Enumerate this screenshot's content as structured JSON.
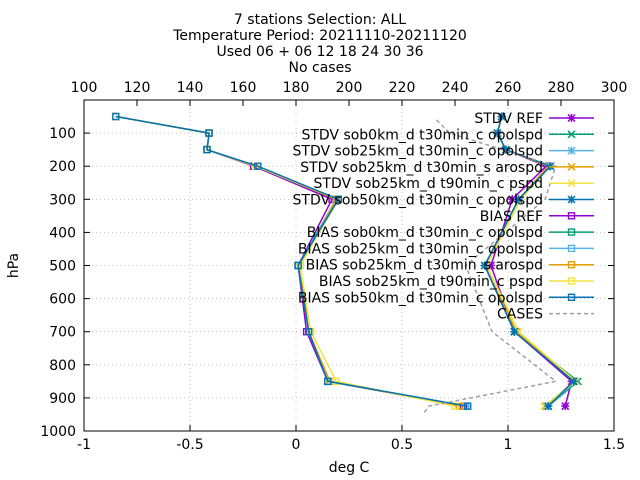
{
  "header": {
    "title": "7 stations Selection: ALL",
    "subtitle": "Temperature  Period: 20211110-20211120",
    "used": "Used 06 + 06 12 18 24 30 36",
    "cases": "No cases"
  },
  "chart_data": {
    "type": "line",
    "title": "7 stations Selection: ALL",
    "xlabel": "deg C",
    "ylabel": "hPa",
    "xlim": [
      -1,
      1.5
    ],
    "ylim": [
      1000,
      0
    ],
    "x_ticks": [
      "-1",
      "-0.5",
      "0",
      "0.5",
      "1",
      "1.5"
    ],
    "y_ticks": [
      "100",
      "200",
      "300",
      "400",
      "500",
      "600",
      "700",
      "800",
      "900",
      "1000"
    ],
    "x2lim": [
      100,
      300
    ],
    "x2_ticks": [
      "100",
      "120",
      "140",
      "160",
      "180",
      "200",
      "220",
      "240",
      "260",
      "280",
      "300"
    ],
    "grid": true,
    "legend_position": "top-right",
    "levels": [
      50,
      100,
      150,
      200,
      300,
      500,
      700,
      850,
      925
    ],
    "series": [
      {
        "name": "STDV REF",
        "color": "#9400d3",
        "marker": "star",
        "dash": false,
        "axis": "x1",
        "values": [
          0.97,
          0.95,
          0.99,
          1.18,
          1.02,
          0.92,
          1.03,
          1.3,
          1.27
        ]
      },
      {
        "name": "STDV sob0km_d t30min_c opolspd",
        "color": "#009e73",
        "marker": "x",
        "dash": false,
        "axis": "x1",
        "values": [
          0.97,
          0.95,
          0.99,
          1.2,
          1.05,
          0.89,
          1.03,
          1.33,
          1.19
        ]
      },
      {
        "name": "STDV sob25km_d t30min_c opolspd",
        "color": "#56b4e9",
        "marker": "star",
        "dash": false,
        "axis": "x1",
        "values": [
          0.97,
          0.95,
          0.99,
          1.2,
          1.05,
          0.89,
          1.03,
          1.32,
          1.19
        ]
      },
      {
        "name": "STDV sob25km_d t30min_s arospd",
        "color": "#e69f00",
        "marker": "x",
        "dash": false,
        "axis": "x1",
        "values": [
          0.97,
          0.95,
          0.99,
          1.19,
          1.05,
          0.89,
          1.04,
          1.31,
          1.18
        ]
      },
      {
        "name": "STDV sob25km_d t90min_c pspd",
        "color": "#f0e442",
        "marker": "x",
        "dash": false,
        "axis": "x1",
        "values": [
          0.97,
          0.95,
          0.99,
          1.2,
          1.06,
          0.9,
          1.05,
          1.32,
          1.17
        ]
      },
      {
        "name": "STDV sob50km_d t30min_c opolspd",
        "color": "#0072b2",
        "marker": "star",
        "dash": false,
        "axis": "x1",
        "values": [
          0.97,
          0.95,
          0.99,
          1.2,
          1.05,
          0.89,
          1.03,
          1.31,
          1.19
        ]
      },
      {
        "name": "BIAS REF",
        "color": "#9400d3",
        "marker": "square",
        "dash": false,
        "axis": "x1",
        "values": [
          -0.85,
          -0.41,
          -0.42,
          -0.2,
          0.17,
          0.01,
          0.05,
          0.15,
          0.79
        ]
      },
      {
        "name": "BIAS sob0km_d t30min_c opolspd",
        "color": "#009e73",
        "marker": "square",
        "dash": false,
        "axis": "x1",
        "values": [
          -0.85,
          -0.41,
          -0.42,
          -0.19,
          0.19,
          0.01,
          0.06,
          0.15,
          0.8
        ]
      },
      {
        "name": "BIAS sob25km_d t30min_c opolspd",
        "color": "#56b4e9",
        "marker": "square",
        "dash": false,
        "axis": "x1",
        "values": [
          -0.85,
          -0.41,
          -0.42,
          -0.19,
          0.19,
          0.01,
          0.06,
          0.15,
          0.8
        ]
      },
      {
        "name": "BIAS sob25km_d t30min_s arospd",
        "color": "#e69f00",
        "marker": "square",
        "dash": false,
        "axis": "x1",
        "values": [
          -0.85,
          -0.41,
          -0.42,
          -0.19,
          0.19,
          0.02,
          0.06,
          0.16,
          0.77
        ]
      },
      {
        "name": "BIAS sob25km_d t90min_c pspd",
        "color": "#f0e442",
        "marker": "square",
        "dash": false,
        "axis": "x1",
        "values": [
          -0.85,
          -0.41,
          -0.42,
          -0.19,
          0.2,
          0.02,
          0.07,
          0.19,
          0.75
        ]
      },
      {
        "name": "BIAS sob50km_d t30min_c opolspd",
        "color": "#0072b2",
        "marker": "square",
        "dash": false,
        "axis": "x1",
        "values": [
          -0.85,
          -0.41,
          -0.42,
          -0.18,
          0.2,
          0.01,
          0.06,
          0.15,
          0.81
        ]
      },
      {
        "name": "CASES",
        "color": "#a0a0a0",
        "marker": "none",
        "dash": true,
        "axis": "x2",
        "values": [
          null,
          238,
          258,
          278,
          274,
          244,
          254,
          278,
          230
        ]
      }
    ],
    "cases_extra": {
      "levels": [
        60,
        950
      ],
      "values": [
        233,
        228
      ]
    }
  }
}
